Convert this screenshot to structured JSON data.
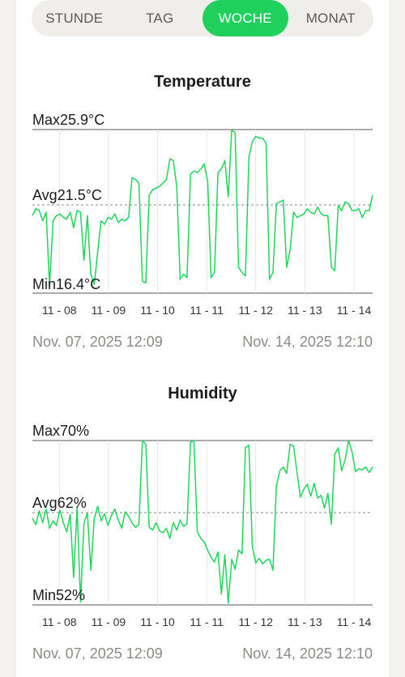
{
  "tabs": [
    {
      "label": "STUNDE",
      "active": false
    },
    {
      "label": "TAG",
      "active": false
    },
    {
      "label": "WOCHE",
      "active": true
    },
    {
      "label": "MONAT",
      "active": false
    }
  ],
  "colors": {
    "accent": "#1fd15c",
    "line": "#22d35f",
    "grid": "#555555"
  },
  "temperature": {
    "title": "Temperature",
    "max_label": "Max25.9°C",
    "avg_label": "Avg21.5°C",
    "min_label": "Min16.4°C",
    "start": "Nov. 07, 2025 12:09",
    "end": "Nov. 14, 2025 12:10"
  },
  "humidity": {
    "title": "Humidity",
    "max_label": "Max70%",
    "avg_label": "Avg62%",
    "min_label": "Min52%",
    "start": "Nov. 07, 2025 12:09",
    "end": "Nov. 14, 2025 12:10"
  },
  "chart_data": [
    {
      "type": "line",
      "title": "Temperature",
      "unit": "°C",
      "ylim": [
        16.4,
        25.9
      ],
      "max": 25.9,
      "avg": 21.5,
      "min": 16.4,
      "x_ticks": [
        "11 - 08",
        "11 - 09",
        "11 - 10",
        "11 - 11",
        "11 - 12",
        "11 - 13",
        "11 - 14"
      ],
      "x_days": [
        0.0,
        0.07,
        0.14,
        0.21,
        0.28,
        0.35,
        0.42,
        0.49,
        0.56,
        0.63,
        0.7,
        0.77,
        0.84,
        0.91,
        0.98,
        1.05,
        1.12,
        1.19,
        1.26,
        1.33,
        1.4,
        1.47,
        1.54,
        1.61,
        1.68,
        1.75,
        1.82,
        1.89,
        1.96,
        2.03,
        2.1,
        2.17,
        2.24,
        2.31,
        2.38,
        2.45,
        2.52,
        2.59,
        2.66,
        2.73,
        2.8,
        2.87,
        2.94,
        3.01,
        3.08,
        3.15,
        3.22,
        3.29,
        3.36,
        3.43,
        3.5,
        3.57,
        3.64,
        3.71,
        3.78,
        3.85,
        3.92,
        3.99,
        4.06,
        4.13,
        4.2,
        4.27,
        4.34,
        4.41,
        4.48,
        4.55,
        4.62,
        4.69,
        4.76,
        4.83,
        4.9,
        4.97,
        5.04,
        5.11,
        5.18,
        5.25,
        5.32,
        5.39,
        5.46,
        5.53,
        5.6,
        5.67,
        5.74,
        5.81,
        5.88,
        5.95,
        6.02,
        6.09,
        6.16,
        6.23,
        6.3,
        6.37,
        6.44,
        6.51,
        6.58,
        6.65,
        6.72,
        6.79,
        6.86,
        6.93
      ],
      "values": [
        20.9,
        21.3,
        21.2,
        20.6,
        21.1,
        16.8,
        20.6,
        20.9,
        21.0,
        20.8,
        20.7,
        21.1,
        20.2,
        21.2,
        21.1,
        18.3,
        20.9,
        17.5,
        16.9,
        18.8,
        20.6,
        20.4,
        20.8,
        20.7,
        21.0,
        20.5,
        20.7,
        20.6,
        20.8,
        23.1,
        23.0,
        22.8,
        17.1,
        17.0,
        22.1,
        22.4,
        22.5,
        22.6,
        22.8,
        23.0,
        24.2,
        24.1,
        22.6,
        17.2,
        17.5,
        17.3,
        23.3,
        23.5,
        23.4,
        23.6,
        23.9,
        22.9,
        17.3,
        17.6,
        23.4,
        23.6,
        24.1,
        22.0,
        25.9,
        25.7,
        17.9,
        17.6,
        17.4,
        24.3,
        25.2,
        25.5,
        25.4,
        25.4,
        25.1,
        17.2,
        17.6,
        21.6,
        21.7,
        21.8,
        17.9,
        18.9,
        21.1,
        20.8,
        20.9,
        21.0,
        21.3,
        21.1,
        21.0,
        21.4,
        21.0,
        20.9,
        20.9,
        17.9,
        17.7,
        21.5,
        21.2,
        21.7,
        21.6,
        21.2,
        21.2,
        21.3,
        20.8,
        21.2,
        21.2,
        22.1
      ],
      "x_range": [
        0,
        6.93
      ]
    },
    {
      "type": "line",
      "title": "Humidity",
      "unit": "%",
      "ylim": [
        52,
        70
      ],
      "max": 70,
      "avg": 62,
      "min": 52,
      "x_ticks": [
        "11 - 08",
        "11 - 09",
        "11 - 10",
        "11 - 11",
        "11 - 12",
        "11 - 13",
        "11 - 14"
      ],
      "x_days": [
        0.0,
        0.07,
        0.14,
        0.21,
        0.28,
        0.35,
        0.42,
        0.49,
        0.56,
        0.63,
        0.7,
        0.77,
        0.84,
        0.91,
        0.98,
        1.05,
        1.12,
        1.19,
        1.26,
        1.33,
        1.4,
        1.47,
        1.54,
        1.61,
        1.68,
        1.75,
        1.82,
        1.89,
        1.96,
        2.03,
        2.1,
        2.17,
        2.24,
        2.31,
        2.38,
        2.45,
        2.52,
        2.59,
        2.66,
        2.73,
        2.8,
        2.87,
        2.94,
        3.01,
        3.08,
        3.15,
        3.22,
        3.29,
        3.36,
        3.43,
        3.5,
        3.57,
        3.64,
        3.71,
        3.78,
        3.85,
        3.92,
        3.99,
        4.06,
        4.13,
        4.2,
        4.27,
        4.34,
        4.41,
        4.48,
        4.55,
        4.62,
        4.69,
        4.76,
        4.83,
        4.9,
        4.97,
        5.04,
        5.11,
        5.18,
        5.25,
        5.32,
        5.39,
        5.46,
        5.53,
        5.6,
        5.67,
        5.74,
        5.81,
        5.88,
        5.95,
        6.02,
        6.09,
        6.16,
        6.23,
        6.3,
        6.37,
        6.44,
        6.51,
        6.58,
        6.65,
        6.72,
        6.79,
        6.86,
        6.93
      ],
      "values": [
        61.5,
        60.8,
        62.3,
        61.0,
        62.5,
        60.4,
        61.2,
        60.7,
        62.4,
        61.0,
        60.0,
        61.9,
        55.0,
        62.7,
        52.3,
        60.9,
        62.1,
        55.8,
        61.5,
        62.8,
        61.2,
        62.0,
        60.7,
        61.8,
        62.5,
        61.3,
        60.4,
        62.2,
        61.7,
        61.0,
        60.5,
        60.8,
        70.0,
        69.6,
        60.5,
        60.2,
        61.0,
        60.1,
        59.9,
        60.4,
        59.3,
        61.0,
        60.2,
        61.3,
        60.6,
        60.9,
        69.8,
        70.0,
        60.0,
        59.3,
        58.9,
        58.0,
        57.2,
        56.7,
        57.8,
        53.2,
        57.5,
        52.2,
        57.0,
        55.9,
        58.0,
        57.6,
        69.2,
        69.5,
        58.4,
        56.6,
        57.1,
        56.5,
        56.9,
        57.0,
        55.8,
        65.0,
        66.7,
        67.1,
        66.4,
        69.6,
        69.4,
        66.5,
        63.8,
        64.7,
        65.2,
        63.9,
        65.3,
        63.7,
        64.0,
        62.6,
        64.2,
        60.8,
        68.5,
        69.2,
        66.7,
        67.9,
        70.0,
        68.8,
        66.6,
        66.9,
        66.8,
        67.1,
        66.5,
        67.1
      ],
      "x_range": [
        0,
        6.93
      ]
    }
  ]
}
